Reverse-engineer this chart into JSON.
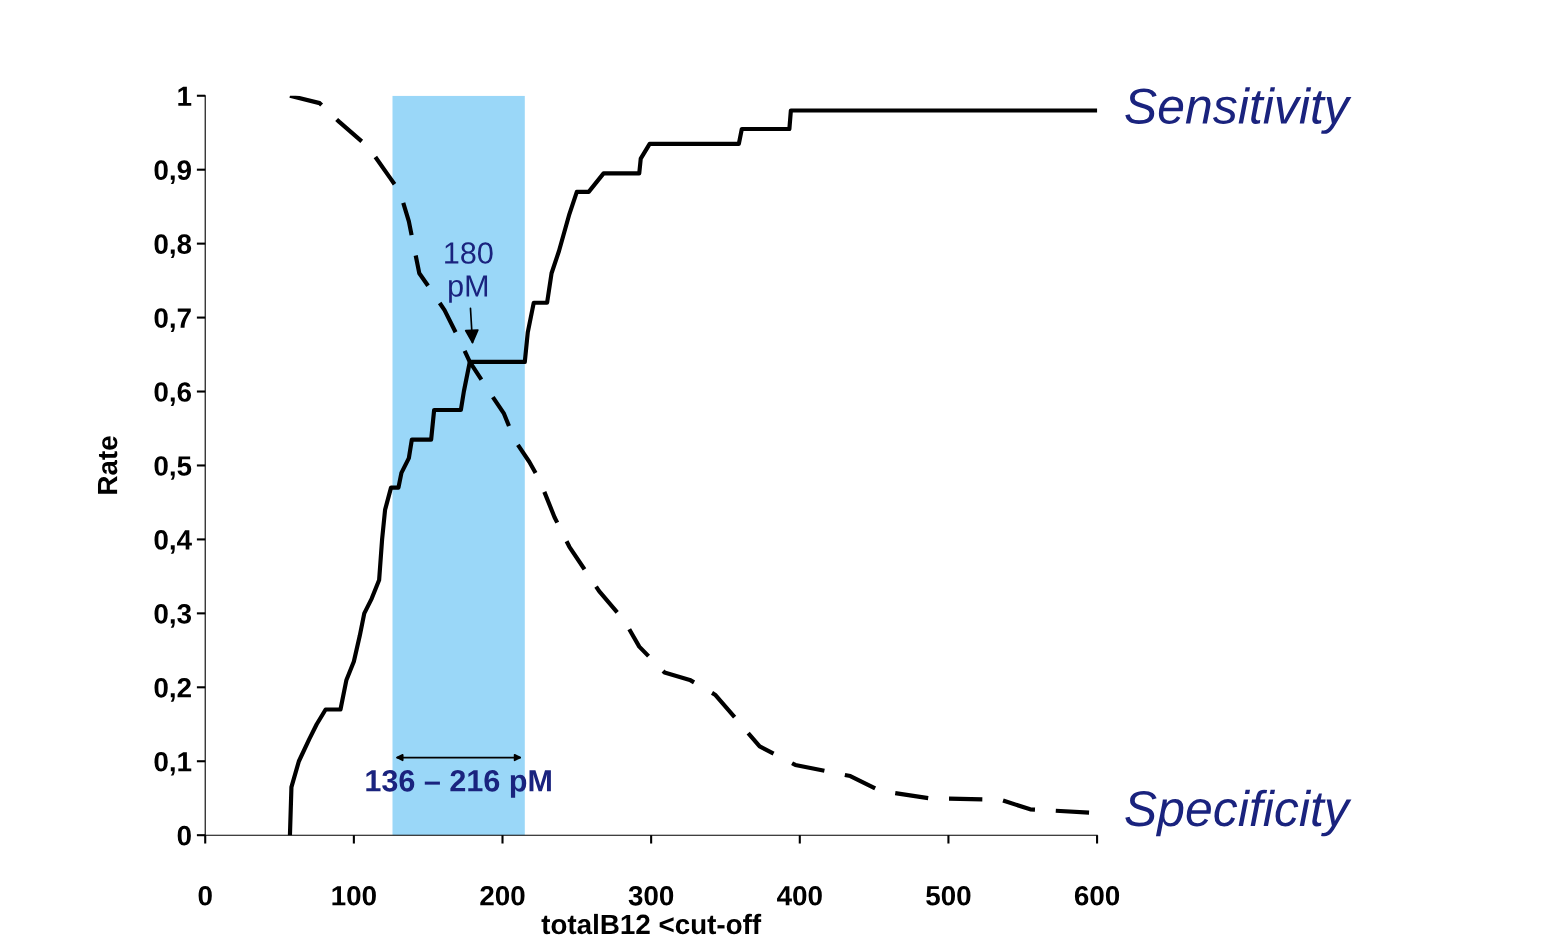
{
  "chart_data": {
    "type": "line",
    "xlabel": "totalB12 <cut-off",
    "ylabel": "Rate",
    "xlim": [
      0,
      600
    ],
    "xticks": [
      0,
      100,
      200,
      300,
      400,
      500,
      600
    ],
    "ylim": [
      0,
      1
    ],
    "yticks": [
      {
        "value": 0,
        "label": "0"
      },
      {
        "value": 0.1,
        "label": "0,1"
      },
      {
        "value": 0.2,
        "label": "0,2"
      },
      {
        "value": 0.3,
        "label": "0,3"
      },
      {
        "value": 0.4,
        "label": "0,4"
      },
      {
        "value": 0.5,
        "label": "0,5"
      },
      {
        "value": 0.6,
        "label": "0,6"
      },
      {
        "value": 0.7,
        "label": "0,7"
      },
      {
        "value": 0.8,
        "label": "0,8"
      },
      {
        "value": 0.9,
        "label": "0,9"
      },
      {
        "value": 1,
        "label": "1"
      }
    ],
    "grid": false,
    "legend": false,
    "marker": "none",
    "series": [
      {
        "name": "Sensitivity",
        "color": "#000000",
        "line_style": "solid",
        "x": [
          57,
          58,
          63,
          70,
          75,
          81,
          91,
          95,
          100,
          104,
          107,
          112,
          117,
          119,
          121,
          125,
          130,
          132,
          137,
          139,
          152,
          154,
          172,
          174,
          178,
          215,
          217,
          221,
          230,
          233,
          238,
          245,
          250,
          258,
          268,
          292,
          293,
          299,
          359,
          361,
          393,
          394,
          600
        ],
        "values": [
          0,
          0.065,
          0.1,
          0.13,
          0.15,
          0.17,
          0.17,
          0.21,
          0.235,
          0.27,
          0.3,
          0.32,
          0.345,
          0.4,
          0.44,
          0.47,
          0.47,
          0.49,
          0.51,
          0.535,
          0.535,
          0.575,
          0.575,
          0.6,
          0.64,
          0.64,
          0.68,
          0.72,
          0.72,
          0.76,
          0.79,
          0.84,
          0.87,
          0.87,
          0.895,
          0.895,
          0.915,
          0.935,
          0.935,
          0.955,
          0.955,
          0.98,
          0.98
        ]
      },
      {
        "name": "Specificity",
        "color": "#000000",
        "line_style": "dashed",
        "x": [
          57,
          77,
          90,
          110,
          124,
          131,
          137,
          144,
          151,
          161,
          171,
          178,
          191,
          201,
          208,
          218,
          225,
          235,
          245,
          255,
          265,
          282,
          292,
          309,
          326,
          343,
          356,
          373,
          397,
          434,
          454,
          487,
          535,
          555,
          600
        ],
        "values": [
          1,
          0.99,
          0.965,
          0.93,
          0.89,
          0.87,
          0.83,
          0.76,
          0.74,
          0.71,
          0.67,
          0.64,
          0.6,
          0.57,
          0.535,
          0.505,
          0.48,
          0.43,
          0.39,
          0.36,
          0.33,
          0.29,
          0.255,
          0.22,
          0.21,
          0.19,
          0.16,
          0.12,
          0.095,
          0.08,
          0.06,
          0.05,
          0.048,
          0.035,
          0.03
        ]
      }
    ],
    "bands": [
      {
        "axis": "x",
        "from": 126,
        "to": 215,
        "color": "#8fd3f7"
      }
    ],
    "annotations": [
      "180\npM",
      "136 – 216 pM"
    ]
  }
}
